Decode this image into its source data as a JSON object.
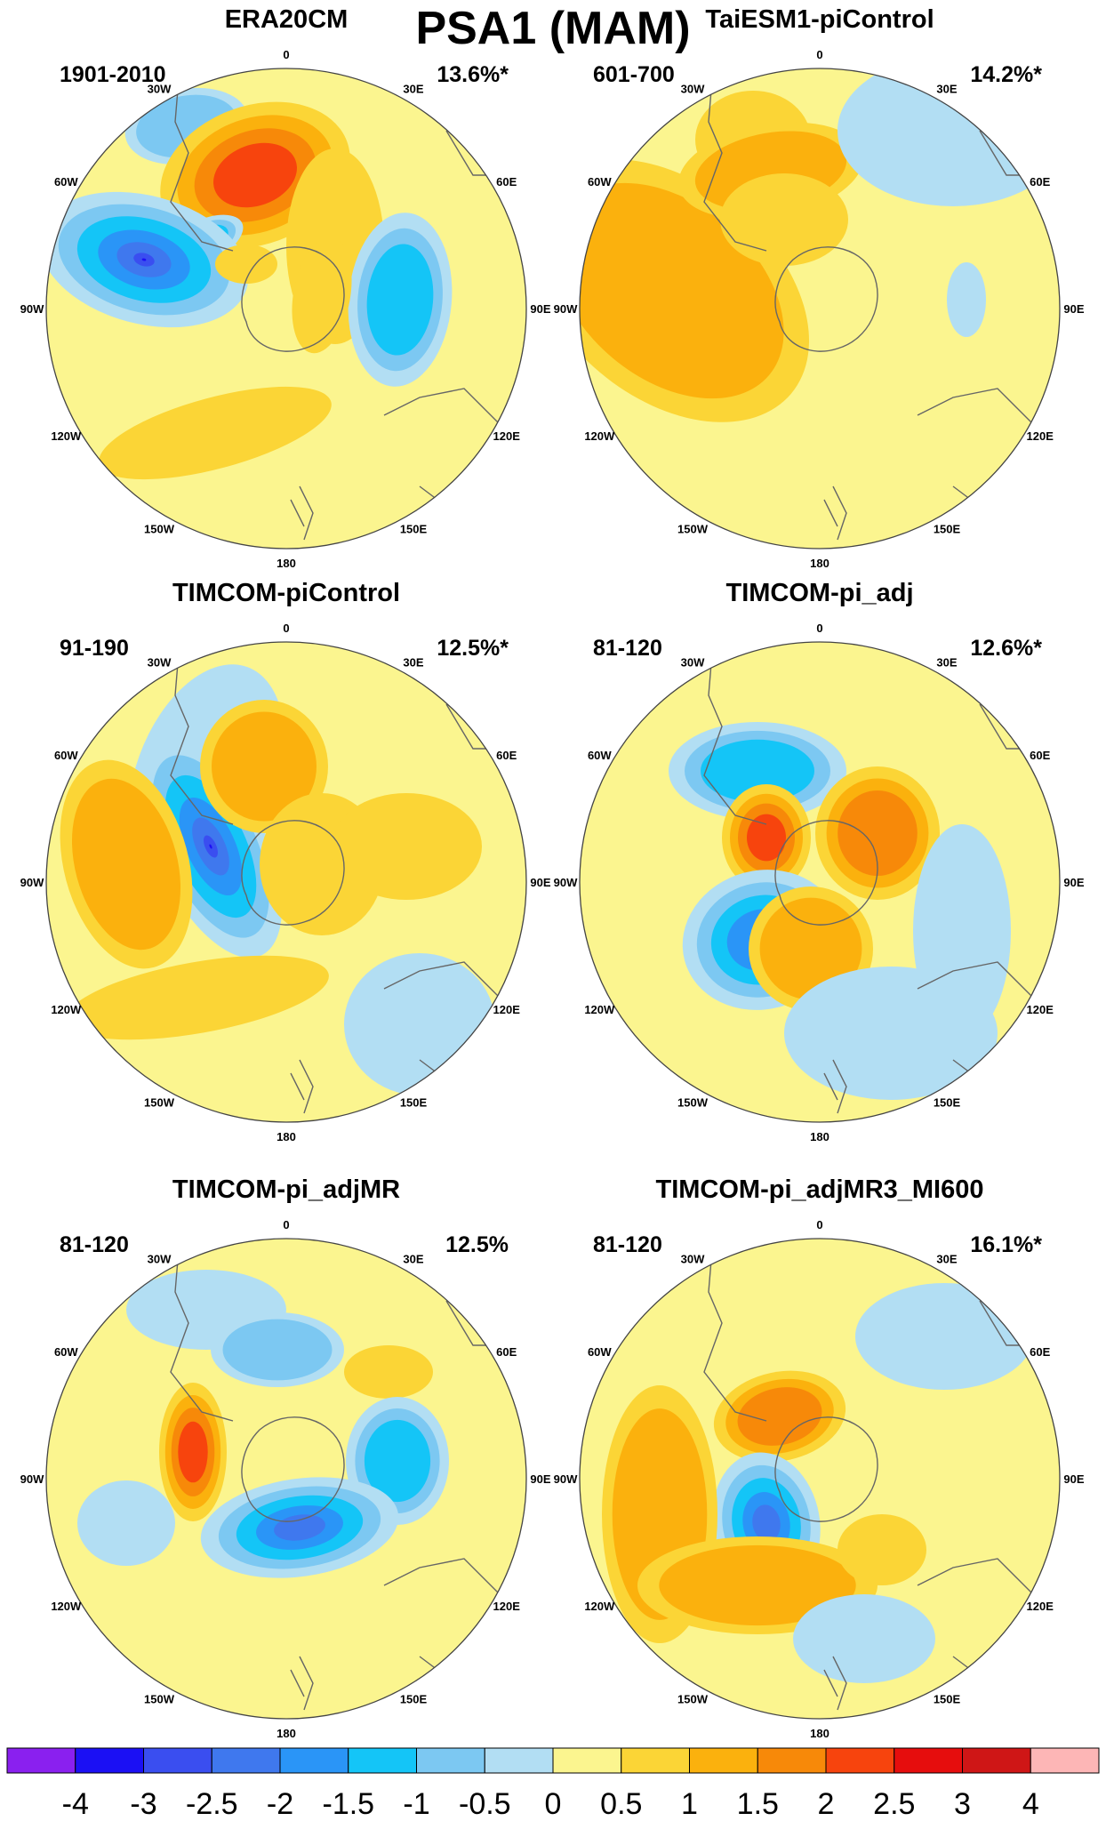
{
  "figure": {
    "title": "PSA1 (MAM)"
  },
  "colors": {
    "boundary": "#444444",
    "coast": "#666666",
    "background": "#fbf58f"
  },
  "chart_data": [
    {
      "type": "contour-map",
      "title": "ERA20CM",
      "years": "1901-2010",
      "variance": "13.6%*",
      "lon_labels": [
        "0",
        "30E",
        "60E",
        "90E",
        "120E",
        "150E",
        "180",
        "150W",
        "120W",
        "90W",
        "60W",
        "30W"
      ]
    },
    {
      "type": "contour-map",
      "title": "TaiESM1-piControl",
      "years": "601-700",
      "variance": "14.2%*",
      "lon_labels": [
        "0",
        "30E",
        "60E",
        "90E",
        "120E",
        "150E",
        "180",
        "150W",
        "120W",
        "90W",
        "60W",
        "30W"
      ]
    },
    {
      "type": "contour-map",
      "title": "TIMCOM-piControl",
      "years": "91-190",
      "variance": "12.5%*",
      "lon_labels": [
        "0",
        "30E",
        "60E",
        "90E",
        "120E",
        "150E",
        "180",
        "150W",
        "120W",
        "90W",
        "60W",
        "30W"
      ]
    },
    {
      "type": "contour-map",
      "title": "TIMCOM-pi_adj",
      "years": "81-120",
      "variance": "12.6%*",
      "lon_labels": [
        "0",
        "30E",
        "60E",
        "90E",
        "120E",
        "150E",
        "180",
        "150W",
        "120W",
        "90W",
        "60W",
        "30W"
      ]
    },
    {
      "type": "contour-map",
      "title": "TIMCOM-pi_adjMR",
      "years": "81-120",
      "variance": "12.5%",
      "lon_labels": [
        "0",
        "30E",
        "60E",
        "90E",
        "120E",
        "150E",
        "180",
        "150W",
        "120W",
        "90W",
        "60W",
        "30W"
      ]
    },
    {
      "type": "contour-map",
      "title": "TIMCOM-pi_adjMR3_MI600",
      "years": "81-120",
      "variance": "16.1%*",
      "lon_labels": [
        "0",
        "30E",
        "60E",
        "90E",
        "120E",
        "150E",
        "180",
        "150W",
        "120W",
        "90W",
        "60W",
        "30W"
      ]
    }
  ],
  "colorbar": {
    "labels": [
      "-4",
      "-3",
      "-2.5",
      "-2",
      "-1.5",
      "-1",
      "-0.5",
      "0",
      "0.5",
      "1",
      "1.5",
      "2",
      "2.5",
      "3",
      "4"
    ],
    "colors": [
      "#8a20ef",
      "#1b10f4",
      "#3a4ef0",
      "#3f78ee",
      "#2a95f7",
      "#14c5f7",
      "#7cc8f2",
      "#b2def3",
      "#fbf58f",
      "#fbd536",
      "#fbb10d",
      "#f78909",
      "#f7440d",
      "#e60d0d",
      "#cf1616",
      "#fdb6b6"
    ]
  }
}
